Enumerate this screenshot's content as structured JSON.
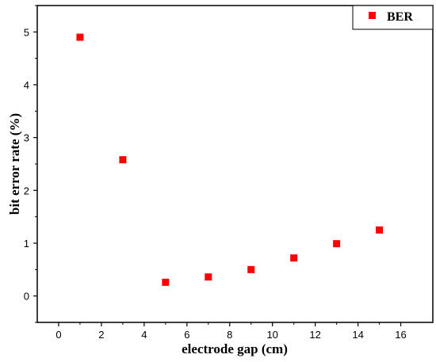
{
  "chart_data": {
    "type": "scatter",
    "xlabel": "electrode gap (cm)",
    "ylabel": "bit error rate (%)",
    "xlim": [
      -1,
      17.5
    ],
    "ylim": [
      -0.5,
      5.5
    ],
    "xticks": [
      0,
      2,
      4,
      6,
      8,
      10,
      12,
      14,
      16
    ],
    "yticks": [
      0,
      1,
      2,
      3,
      4,
      5
    ],
    "grid": false,
    "legend_position": "top-right",
    "series": [
      {
        "name": "BER",
        "color": "#ff0000",
        "marker": "square",
        "x": [
          1,
          3,
          5,
          7,
          9,
          11,
          13,
          15
        ],
        "y": [
          4.9,
          2.58,
          0.26,
          0.36,
          0.5,
          0.72,
          0.99,
          1.25
        ]
      }
    ]
  }
}
